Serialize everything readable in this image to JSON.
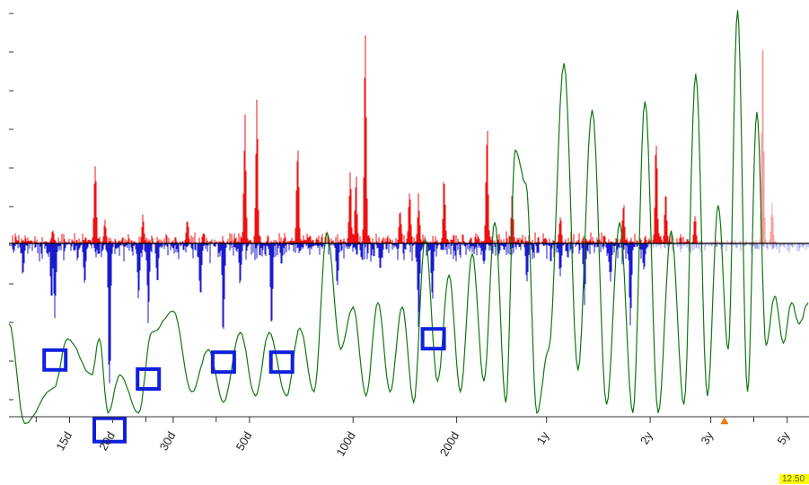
{
  "chart_data": {
    "type": "line",
    "title": "",
    "xlabel": "",
    "ylabel": "",
    "x_scale": "log",
    "x_unit": "days",
    "xlim": [
      10,
      2100
    ],
    "ylim": [
      -1.0,
      1.0
    ],
    "grid": false,
    "legend": "none",
    "colors": {
      "positive_spectrum": "#ee1111",
      "negative_spectrum": "#1a1acc",
      "oscillator": "#117711",
      "fade_positive": "#f5a0a0",
      "fade_negative": "#a0a0ee",
      "boxes": "#1020dd",
      "baseline": "#000000",
      "marker": "#ff7700"
    },
    "tick_labels": [
      {
        "label": "15d",
        "x": 15
      },
      {
        "label": "20d",
        "x": 20
      },
      {
        "label": "30d",
        "x": 30
      },
      {
        "label": "50d",
        "x": 50
      },
      {
        "label": "100d",
        "x": 100
      },
      {
        "label": "200d",
        "x": 200
      },
      {
        "label": "1y",
        "x": 365
      },
      {
        "label": "2y",
        "x": 730
      },
      {
        "label": "3y",
        "x": 1095
      },
      {
        "label": "5y",
        "x": 1826
      }
    ],
    "minor_ticks_x": [
      12,
      25,
      40,
      1460
    ],
    "red_peaks": [
      {
        "x": 13.4,
        "y": 0.08
      },
      {
        "x": 17.8,
        "y": 0.47
      },
      {
        "x": 19.0,
        "y": 0.12
      },
      {
        "x": 24.5,
        "y": 0.14
      },
      {
        "x": 33.0,
        "y": 0.13
      },
      {
        "x": 48.5,
        "y": 0.66
      },
      {
        "x": 52.5,
        "y": 0.71
      },
      {
        "x": 69.0,
        "y": 0.55
      },
      {
        "x": 98.0,
        "y": 0.38
      },
      {
        "x": 102.0,
        "y": 0.35
      },
      {
        "x": 108.5,
        "y": 1.0
      },
      {
        "x": 137.0,
        "y": 0.2
      },
      {
        "x": 146.0,
        "y": 0.28
      },
      {
        "x": 155.0,
        "y": 0.25
      },
      {
        "x": 184.0,
        "y": 0.35
      },
      {
        "x": 245.0,
        "y": 0.6
      },
      {
        "x": 290.0,
        "y": 0.25
      },
      {
        "x": 400.0,
        "y": 0.15
      },
      {
        "x": 610.0,
        "y": 0.22
      },
      {
        "x": 760.0,
        "y": 0.6
      },
      {
        "x": 810.0,
        "y": 0.3
      },
      {
        "x": 985.0,
        "y": 0.15
      }
    ],
    "faded_peaks": [
      {
        "x": 1550.0,
        "y": 1.08
      },
      {
        "x": 1650.0,
        "y": 0.2
      }
    ],
    "blue_dips": [
      {
        "x": 11.0,
        "y": -0.18
      },
      {
        "x": 13.3,
        "y": -0.32
      },
      {
        "x": 13.6,
        "y": -0.4
      },
      {
        "x": 16.6,
        "y": -0.25
      },
      {
        "x": 19.6,
        "y": -0.82
      },
      {
        "x": 23.8,
        "y": -0.31
      },
      {
        "x": 25.4,
        "y": -0.4
      },
      {
        "x": 27.0,
        "y": -0.2
      },
      {
        "x": 36.0,
        "y": -0.3
      },
      {
        "x": 42.0,
        "y": -0.5
      },
      {
        "x": 47.0,
        "y": -0.22
      },
      {
        "x": 58.0,
        "y": -0.48
      },
      {
        "x": 62.0,
        "y": -0.12
      },
      {
        "x": 90.0,
        "y": -0.23
      },
      {
        "x": 120.0,
        "y": -0.16
      },
      {
        "x": 155.0,
        "y": -0.4
      },
      {
        "x": 170.0,
        "y": -0.32
      },
      {
        "x": 240.0,
        "y": -0.12
      },
      {
        "x": 320.0,
        "y": -0.22
      },
      {
        "x": 400.0,
        "y": -0.2
      },
      {
        "x": 470.0,
        "y": -0.35
      },
      {
        "x": 560.0,
        "y": -0.2
      },
      {
        "x": 640.0,
        "y": -0.42
      },
      {
        "x": 700.0,
        "y": -0.15
      }
    ],
    "highlighted_cycles": [
      {
        "x": 13.6,
        "y": -0.55
      },
      {
        "x": 19.6,
        "y": -0.88
      },
      {
        "x": 25.4,
        "y": -0.64
      },
      {
        "x": 42.0,
        "y": -0.56
      },
      {
        "x": 62.0,
        "y": -0.56
      },
      {
        "x": 171.0,
        "y": -0.45
      }
    ],
    "oscillator_extremes": [
      {
        "x": 10.0,
        "y": -0.38
      },
      {
        "x": 11.1,
        "y": -0.85
      },
      {
        "x": 13.5,
        "y": -0.68
      },
      {
        "x": 14.8,
        "y": -0.45
      },
      {
        "x": 17.4,
        "y": -0.62
      },
      {
        "x": 18.3,
        "y": -0.45
      },
      {
        "x": 19.4,
        "y": -0.8
      },
      {
        "x": 21.0,
        "y": -0.62
      },
      {
        "x": 23.8,
        "y": -0.8
      },
      {
        "x": 26.0,
        "y": -0.42
      },
      {
        "x": 30.0,
        "y": -0.32
      },
      {
        "x": 34.0,
        "y": -0.7
      },
      {
        "x": 38.0,
        "y": -0.5
      },
      {
        "x": 42.0,
        "y": -0.75
      },
      {
        "x": 47.0,
        "y": -0.42
      },
      {
        "x": 52.0,
        "y": -0.72
      },
      {
        "x": 57.0,
        "y": -0.42
      },
      {
        "x": 64.0,
        "y": -0.72
      },
      {
        "x": 70.0,
        "y": -0.4
      },
      {
        "x": 77.0,
        "y": -0.7
      },
      {
        "x": 84.0,
        "y": 0.05
      },
      {
        "x": 92.0,
        "y": -0.5
      },
      {
        "x": 100.0,
        "y": -0.3
      },
      {
        "x": 109.0,
        "y": -0.72
      },
      {
        "x": 118.0,
        "y": -0.28
      },
      {
        "x": 128.0,
        "y": -0.7
      },
      {
        "x": 139.0,
        "y": -0.3
      },
      {
        "x": 150.0,
        "y": -0.75
      },
      {
        "x": 162.0,
        "y": 0.02
      },
      {
        "x": 176.0,
        "y": -0.65
      },
      {
        "x": 190.0,
        "y": -0.15
      },
      {
        "x": 205.0,
        "y": -0.7
      },
      {
        "x": 222.0,
        "y": -0.05
      },
      {
        "x": 240.0,
        "y": -0.65
      },
      {
        "x": 258.0,
        "y": 0.1
      },
      {
        "x": 278.0,
        "y": -0.75
      },
      {
        "x": 296.0,
        "y": 0.44
      },
      {
        "x": 318.0,
        "y": 0.28
      },
      {
        "x": 342.0,
        "y": -0.8
      },
      {
        "x": 370.0,
        "y": -0.5
      },
      {
        "x": 410.0,
        "y": 0.85
      },
      {
        "x": 450.0,
        "y": -0.6
      },
      {
        "x": 495.0,
        "y": 0.63
      },
      {
        "x": 545.0,
        "y": -0.76
      },
      {
        "x": 595.0,
        "y": 0.1
      },
      {
        "x": 650.0,
        "y": -0.8
      },
      {
        "x": 705.0,
        "y": 0.67
      },
      {
        "x": 770.0,
        "y": -0.8
      },
      {
        "x": 840.0,
        "y": 0.06
      },
      {
        "x": 915.0,
        "y": -0.76
      },
      {
        "x": 990.0,
        "y": 0.8
      },
      {
        "x": 1070.0,
        "y": -0.72
      },
      {
        "x": 1150.0,
        "y": 0.18
      },
      {
        "x": 1230.0,
        "y": -0.5
      },
      {
        "x": 1310.0,
        "y": 1.1
      },
      {
        "x": 1400.0,
        "y": -0.7
      },
      {
        "x": 1490.0,
        "y": 0.62
      },
      {
        "x": 1585.0,
        "y": -0.48
      },
      {
        "x": 1680.0,
        "y": -0.25
      },
      {
        "x": 1780.0,
        "y": -0.47
      },
      {
        "x": 1880.0,
        "y": -0.28
      },
      {
        "x": 1980.0,
        "y": -0.38
      },
      {
        "x": 2100.0,
        "y": -0.28
      }
    ],
    "current_position_marker": {
      "x": 1200
    }
  },
  "corner_tag": "12.50"
}
